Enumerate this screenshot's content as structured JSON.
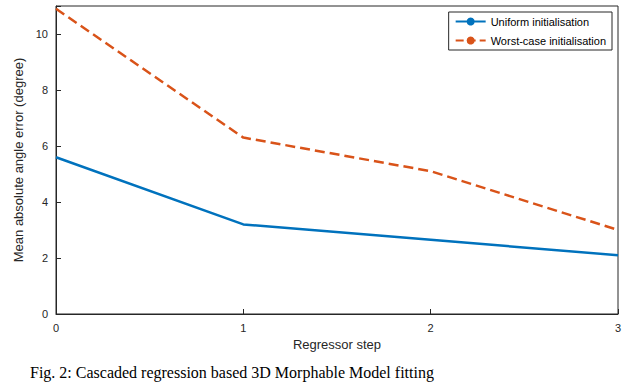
{
  "chart_data": {
    "type": "line",
    "x_label": "Regressor step",
    "y_label": "Mean absolute angle error (degree)",
    "caption": "Fig. 2: Cascaded regression based 3D Morphable Model fitting",
    "x": [
      0,
      1,
      2,
      3
    ],
    "series": [
      {
        "name": "Uniform initialisation",
        "color": "#0072bd",
        "line_style": "solid",
        "values": [
          5.6,
          3.2,
          2.65,
          2.1
        ]
      },
      {
        "name": "Worst-case initialisation",
        "color": "#d95319",
        "line_style": "dashed",
        "values": [
          10.9,
          6.3,
          5.1,
          3.0
        ]
      }
    ],
    "xlim": [
      0,
      3
    ],
    "xticks": [
      0,
      1,
      2,
      3
    ],
    "ylim": [
      0,
      11
    ],
    "yticks": [
      0,
      2,
      4,
      6,
      8,
      10
    ],
    "grid": false,
    "legend": "upper right"
  }
}
